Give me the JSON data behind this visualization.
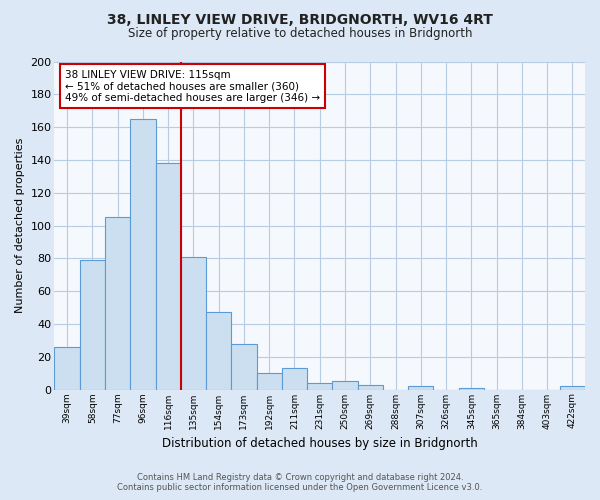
{
  "title": "38, LINLEY VIEW DRIVE, BRIDGNORTH, WV16 4RT",
  "subtitle": "Size of property relative to detached houses in Bridgnorth",
  "xlabel": "Distribution of detached houses by size in Bridgnorth",
  "ylabel": "Number of detached properties",
  "bar_labels": [
    "39sqm",
    "58sqm",
    "77sqm",
    "96sqm",
    "116sqm",
    "135sqm",
    "154sqm",
    "173sqm",
    "192sqm",
    "211sqm",
    "231sqm",
    "250sqm",
    "269sqm",
    "288sqm",
    "307sqm",
    "326sqm",
    "345sqm",
    "365sqm",
    "384sqm",
    "403sqm",
    "422sqm"
  ],
  "bar_values": [
    26,
    79,
    105,
    165,
    138,
    81,
    47,
    28,
    10,
    13,
    4,
    5,
    3,
    0,
    2,
    0,
    1,
    0,
    0,
    0,
    2
  ],
  "bar_color": "#ccdff0",
  "bar_edge_color": "#5b9bd5",
  "vline_index": 4,
  "vline_color": "#cc0000",
  "ylim": [
    0,
    200
  ],
  "yticks": [
    0,
    20,
    40,
    60,
    80,
    100,
    120,
    140,
    160,
    180,
    200
  ],
  "annotation_title": "38 LINLEY VIEW DRIVE: 115sqm",
  "annotation_line1": "← 51% of detached houses are smaller (360)",
  "annotation_line2": "49% of semi-detached houses are larger (346) →",
  "annotation_box_color": "#ffffff",
  "annotation_box_edge": "#cc0000",
  "footer_line1": "Contains HM Land Registry data © Crown copyright and database right 2024.",
  "footer_line2": "Contains public sector information licensed under the Open Government Licence v3.0.",
  "bg_color": "#dce8f5",
  "plot_bg_color": "#f5f8fd",
  "grid_color": "#b8cce4"
}
